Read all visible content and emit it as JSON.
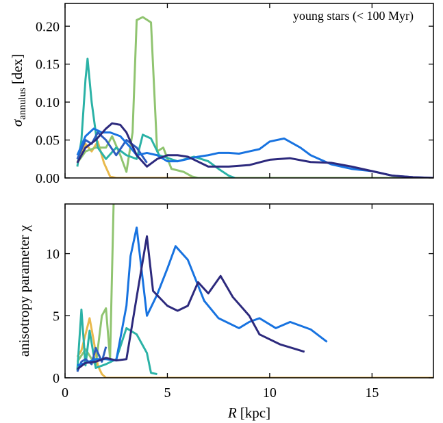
{
  "chart_data": [
    {
      "type": "line",
      "annotation": "young stars (< 100 Myr)",
      "ylabel": {
        "symbol": "σ",
        "subscript": "annulus",
        "unit": "[dex]"
      },
      "xlim": [
        0,
        18
      ],
      "xticks": [
        0,
        5,
        10,
        15
      ],
      "ylim": [
        0,
        0.23
      ],
      "yticks": [
        {
          "value": 0,
          "label": "0.00"
        },
        {
          "value": 0.05,
          "label": "0.05"
        },
        {
          "value": 0.1,
          "label": "0.10"
        },
        {
          "value": 0.15,
          "label": "0.15"
        },
        {
          "value": 0.2,
          "label": "0.20"
        }
      ],
      "series": [
        {
          "color": "#e9b94c",
          "x": [
            0.6,
            0.8,
            1,
            1.3,
            1.6,
            1.9,
            2.2,
            2.5,
            18
          ],
          "values": [
            0.02,
            0.035,
            0.045,
            0.035,
            0.048,
            0.02,
            0.002,
            0,
            0
          ]
        },
        {
          "color": "#90c470",
          "x": [
            0.6,
            1,
            1.5,
            2,
            2.3,
            2.7,
            3,
            3.3,
            3.5,
            3.8,
            4.2,
            4.5,
            4.8,
            5.2,
            5.8,
            6.2,
            6.5,
            18
          ],
          "values": [
            0.02,
            0.035,
            0.04,
            0.04,
            0.055,
            0.03,
            0.008,
            0.06,
            0.208,
            0.212,
            0.205,
            0.035,
            0.04,
            0.012,
            0.008,
            0.002,
            0,
            0
          ]
        },
        {
          "color": "#2bb2a6",
          "x": [
            0.6,
            0.8,
            1,
            1.1,
            1.3,
            1.6,
            2,
            2.5,
            3,
            3.5,
            3.8,
            4.2,
            4.6,
            5.5,
            6.3,
            7,
            7.5,
            8,
            8.3
          ],
          "values": [
            0.015,
            0.05,
            0.13,
            0.157,
            0.1,
            0.04,
            0.025,
            0.04,
            0.03,
            0.025,
            0.057,
            0.052,
            0.03,
            0.022,
            0.028,
            0.022,
            0.012,
            0.003,
            0
          ]
        },
        {
          "color": "#2d5dbf",
          "x": [
            0.6,
            1,
            1.3,
            1.6,
            2,
            2.5,
            3,
            3.5,
            4
          ],
          "values": [
            0.025,
            0.05,
            0.045,
            0.06,
            0.05,
            0.03,
            0.05,
            0.04,
            0.02
          ]
        },
        {
          "color": "#1873e0",
          "x": [
            0.6,
            1,
            1.4,
            1.8,
            2.2,
            2.7,
            3.2,
            3.5,
            4,
            4.5,
            5,
            5.5,
            6,
            6.5,
            7,
            7.5,
            8,
            8.5,
            9,
            9.5,
            10,
            10.7,
            11.5,
            12,
            13,
            14,
            15,
            16,
            17,
            18
          ],
          "values": [
            0.03,
            0.055,
            0.065,
            0.06,
            0.06,
            0.055,
            0.04,
            0.03,
            0.033,
            0.03,
            0.022,
            0.022,
            0.025,
            0.028,
            0.03,
            0.033,
            0.033,
            0.032,
            0.035,
            0.038,
            0.048,
            0.052,
            0.04,
            0.03,
            0.018,
            0.012,
            0.009,
            0.003,
            0.001,
            0
          ]
        },
        {
          "color": "#2d2a7d",
          "x": [
            0.6,
            1,
            1.5,
            2,
            2.3,
            2.7,
            3,
            3.5,
            4,
            4.5,
            5,
            5.5,
            6,
            7,
            8,
            9,
            10,
            11,
            12,
            13,
            14,
            15,
            16,
            17,
            18
          ],
          "values": [
            0.02,
            0.04,
            0.05,
            0.065,
            0.072,
            0.07,
            0.06,
            0.03,
            0.015,
            0.025,
            0.03,
            0.03,
            0.028,
            0.015,
            0.015,
            0.017,
            0.024,
            0.026,
            0.021,
            0.02,
            0.015,
            0.009,
            0.003,
            0.001,
            0
          ]
        }
      ]
    },
    {
      "type": "line",
      "ylabel": "anisotropy parameter χ",
      "xlabel": {
        "symbol": "R",
        "unit": "[kpc]"
      },
      "xlim": [
        0,
        18
      ],
      "xticks": [
        0,
        5,
        10,
        15
      ],
      "ylim": [
        0,
        14
      ],
      "yticks": [
        0,
        5,
        10
      ],
      "series": [
        {
          "color": "#e9b94c",
          "x": [
            0.6,
            0.8,
            1,
            1.2,
            1.4,
            1.6,
            1.8,
            2,
            18
          ],
          "values": [
            1.7,
            2.2,
            3.5,
            4.8,
            3,
            1,
            0.3,
            0,
            0
          ]
        },
        {
          "color": "#90c470",
          "x": [
            0.6,
            1,
            1.5,
            1.8,
            2,
            2.2,
            2.4
          ],
          "values": [
            1.3,
            2.3,
            1,
            5,
            5.6,
            1.5,
            16
          ]
        },
        {
          "color": "#2bb2a6",
          "x": [
            0.6,
            0.8,
            1,
            1.2,
            1.5,
            2,
            2.5,
            3,
            3.5,
            4,
            4.2,
            4.5
          ],
          "values": [
            0.6,
            5.5,
            1,
            3.8,
            0.8,
            1.1,
            1.5,
            4,
            3.5,
            2,
            0.4,
            0.3
          ]
        },
        {
          "color": "#2d5dbf",
          "x": [
            0.6,
            0.8,
            1,
            1.3,
            1.5,
            1.8,
            2
          ],
          "values": [
            0.5,
            1.3,
            1.5,
            1.1,
            2.4,
            1.3,
            2.5
          ]
        },
        {
          "color": "#1873e0",
          "x": [
            0.6,
            1,
            1.5,
            2,
            2.5,
            3,
            3.2,
            3.5,
            4,
            4.5,
            5,
            5.4,
            6,
            6.8,
            7.5,
            8.5,
            9,
            9.5,
            10.3,
            11,
            12,
            12.8
          ],
          "values": [
            1,
            1.2,
            1.5,
            1.5,
            1.4,
            5.8,
            9.8,
            12.1,
            5,
            6.7,
            8.8,
            10.6,
            9.5,
            6.2,
            4.8,
            4,
            4.5,
            4.8,
            4,
            4.5,
            3.9,
            2.9
          ]
        },
        {
          "color": "#2d2a7d",
          "x": [
            0.6,
            1,
            1.5,
            2,
            2.5,
            3,
            3.5,
            4,
            4.3,
            5,
            5.5,
            6,
            6.5,
            7,
            7.6,
            8.2,
            9,
            9.5,
            10.5,
            11.7
          ],
          "values": [
            0.7,
            1.2,
            1.3,
            1.6,
            1.4,
            1.5,
            6.5,
            11.4,
            7,
            5.8,
            5.4,
            5.8,
            7.7,
            6.8,
            8.2,
            6.5,
            5,
            3.5,
            2.7,
            2.1
          ]
        }
      ]
    }
  ]
}
